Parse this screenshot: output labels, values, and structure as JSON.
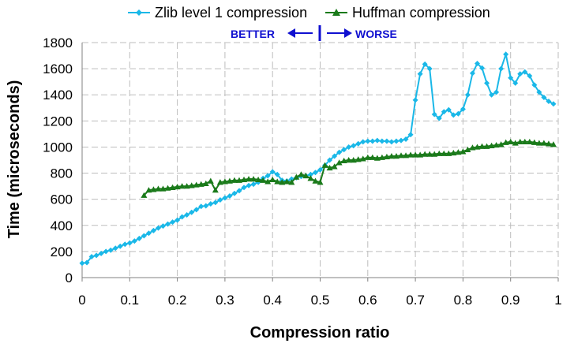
{
  "chart_data": {
    "type": "line",
    "xlabel": "Compression ratio",
    "ylabel": "Time (microseconds)",
    "xlim": [
      0,
      1
    ],
    "ylim": [
      0,
      1800
    ],
    "xticks": [
      "0",
      "0.1",
      "0.2",
      "0.3",
      "0.4",
      "0.5",
      "0.6",
      "0.7",
      "0.8",
      "0.9",
      "1"
    ],
    "yticks": [
      "0",
      "200",
      "400",
      "600",
      "800",
      "1000",
      "1200",
      "1400",
      "1600",
      "1800"
    ],
    "grid": true,
    "legend_position": "top",
    "annotations": {
      "left": "BETTER",
      "right": "WORSE"
    },
    "series": [
      {
        "name": "Zlib level 1 compression",
        "color": "#1ab8e8",
        "marker": "diamond",
        "x": [
          0.0,
          0.01,
          0.02,
          0.03,
          0.04,
          0.05,
          0.06,
          0.07,
          0.08,
          0.09,
          0.1,
          0.11,
          0.12,
          0.13,
          0.14,
          0.15,
          0.16,
          0.17,
          0.18,
          0.19,
          0.2,
          0.21,
          0.22,
          0.23,
          0.24,
          0.25,
          0.26,
          0.27,
          0.28,
          0.29,
          0.3,
          0.31,
          0.32,
          0.33,
          0.34,
          0.35,
          0.36,
          0.37,
          0.38,
          0.39,
          0.4,
          0.41,
          0.42,
          0.43,
          0.44,
          0.45,
          0.46,
          0.47,
          0.48,
          0.49,
          0.5,
          0.51,
          0.52,
          0.53,
          0.54,
          0.55,
          0.56,
          0.57,
          0.58,
          0.59,
          0.6,
          0.61,
          0.62,
          0.63,
          0.64,
          0.65,
          0.66,
          0.67,
          0.68,
          0.69,
          0.7,
          0.71,
          0.72,
          0.73,
          0.74,
          0.75,
          0.76,
          0.77,
          0.78,
          0.79,
          0.8,
          0.81,
          0.82,
          0.83,
          0.84,
          0.85,
          0.86,
          0.87,
          0.88,
          0.89,
          0.9,
          0.91,
          0.92,
          0.93,
          0.94,
          0.95,
          0.96,
          0.97,
          0.98,
          0.99
        ],
        "y": [
          110,
          115,
          160,
          170,
          185,
          200,
          210,
          225,
          240,
          255,
          265,
          280,
          300,
          320,
          340,
          360,
          380,
          395,
          410,
          425,
          440,
          465,
          480,
          500,
          520,
          545,
          550,
          565,
          575,
          595,
          610,
          625,
          645,
          665,
          690,
          705,
          715,
          730,
          760,
          780,
          810,
          790,
          745,
          740,
          755,
          765,
          775,
          780,
          790,
          805,
          825,
          860,
          900,
          930,
          960,
          980,
          1000,
          1010,
          1025,
          1040,
          1045,
          1045,
          1050,
          1045,
          1045,
          1040,
          1045,
          1050,
          1060,
          1095,
          1360,
          1560,
          1635,
          1600,
          1250,
          1220,
          1270,
          1285,
          1245,
          1255,
          1290,
          1400,
          1565,
          1640,
          1605,
          1490,
          1400,
          1420,
          1600,
          1710,
          1530,
          1490,
          1560,
          1575,
          1545,
          1475,
          1420,
          1380,
          1350,
          1330
        ]
      },
      {
        "name": "Huffman compression",
        "color": "#1a7a1a",
        "marker": "triangle",
        "x": [
          0.13,
          0.14,
          0.15,
          0.16,
          0.17,
          0.18,
          0.19,
          0.2,
          0.21,
          0.22,
          0.23,
          0.24,
          0.25,
          0.26,
          0.27,
          0.28,
          0.29,
          0.3,
          0.31,
          0.32,
          0.33,
          0.34,
          0.35,
          0.36,
          0.37,
          0.38,
          0.39,
          0.4,
          0.41,
          0.42,
          0.43,
          0.44,
          0.45,
          0.46,
          0.47,
          0.48,
          0.49,
          0.5,
          0.51,
          0.52,
          0.53,
          0.54,
          0.55,
          0.56,
          0.57,
          0.58,
          0.59,
          0.6,
          0.61,
          0.62,
          0.63,
          0.64,
          0.65,
          0.66,
          0.67,
          0.68,
          0.69,
          0.7,
          0.71,
          0.72,
          0.73,
          0.74,
          0.75,
          0.76,
          0.77,
          0.78,
          0.79,
          0.8,
          0.81,
          0.82,
          0.83,
          0.84,
          0.85,
          0.86,
          0.87,
          0.88,
          0.89,
          0.9,
          0.91,
          0.92,
          0.93,
          0.94,
          0.95,
          0.96,
          0.97,
          0.98,
          0.99
        ],
        "y": [
          630,
          670,
          675,
          680,
          680,
          685,
          690,
          695,
          700,
          700,
          705,
          710,
          715,
          720,
          740,
          670,
          730,
          735,
          740,
          745,
          745,
          750,
          755,
          755,
          750,
          745,
          735,
          750,
          735,
          730,
          735,
          730,
          770,
          790,
          780,
          760,
          740,
          730,
          860,
          840,
          850,
          880,
          895,
          900,
          900,
          905,
          910,
          920,
          920,
          915,
          920,
          925,
          930,
          930,
          935,
          935,
          940,
          940,
          940,
          945,
          945,
          945,
          950,
          950,
          950,
          955,
          960,
          965,
          980,
          995,
          1000,
          1005,
          1005,
          1010,
          1015,
          1020,
          1035,
          1040,
          1030,
          1040,
          1040,
          1040,
          1035,
          1030,
          1030,
          1025,
          1020
        ]
      }
    ]
  }
}
